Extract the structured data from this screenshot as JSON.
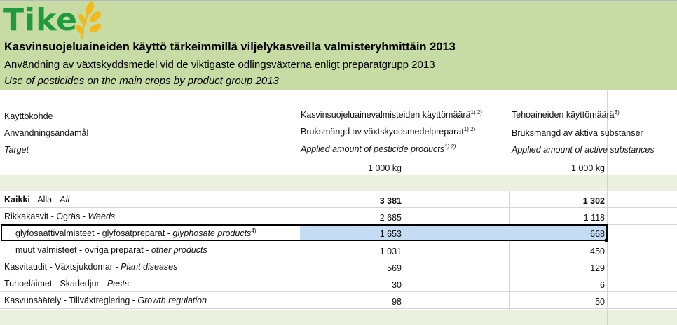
{
  "logo": {
    "text": "Tike"
  },
  "title": {
    "fi": "Kasvinsuojeluaineiden käyttö tärkeimmillä viljelykasveilla valmisteryhmittäin 2013",
    "sv": "Användning av växtskyddsmedel vid de viktigaste odlingsväxterna enligt preparatgrupp 2013",
    "en": "Use of pesticides on the main crops by product group 2013"
  },
  "headers": {
    "target": {
      "fi": "Käyttökohde",
      "sv": "Användningsändamål",
      "en": "Target"
    },
    "products": {
      "fi": "Kasvinsuojeluainevalmisteiden käyttömäärä",
      "sv": "Bruksmängd av växtskyddsmedelpreparat",
      "en": "Applied amount of pesticide products",
      "note": "1) 2)",
      "unit": "1 000 kg"
    },
    "actives": {
      "fi": "Tehoaineiden käyttömäärä",
      "fi_note": "3)",
      "sv": "Bruksmängd av aktiva substanser",
      "en": "Applied amount of active substances",
      "unit": "1 000 kg"
    }
  },
  "rows": [
    {
      "fi": "Kaikki",
      "sv": "Alla",
      "en": "All",
      "products": "3 381",
      "actives": "1 302",
      "bold": true
    },
    {
      "fi": "Rikkakasvit",
      "sv": "Ogräs",
      "en": "Weeds",
      "products": "2 685",
      "actives": "1 118"
    },
    {
      "fi": "glyfosaattivalmisteet",
      "sv": "glyfosatpreparat",
      "en": "glyphosate products",
      "note": "4)",
      "products": "1 653",
      "actives": "668",
      "selected": true
    },
    {
      "fi": "muut valmisteet",
      "sv": "övriga preparat",
      "en": "other products",
      "products": "1 031",
      "actives": "450"
    },
    {
      "fi": "Kasvitaudit",
      "sv": "Växtsjukdomar",
      "en": "Plant diseases",
      "products": "569",
      "actives": "129"
    },
    {
      "fi": "Tuhoeläimet",
      "sv": "Skadedjur",
      "en": "Pests",
      "products": "30",
      "actives": "6"
    },
    {
      "fi": "Kasvunsäätely",
      "sv": "Tillväxtreglering",
      "en": "Growth regulation",
      "products": "98",
      "actives": "50"
    }
  ],
  "colors": {
    "band": "#c6dca4",
    "logo_green": "#1f9a3c",
    "logo_leaf": "#f3b81c",
    "selection": "#c5dcf5"
  }
}
